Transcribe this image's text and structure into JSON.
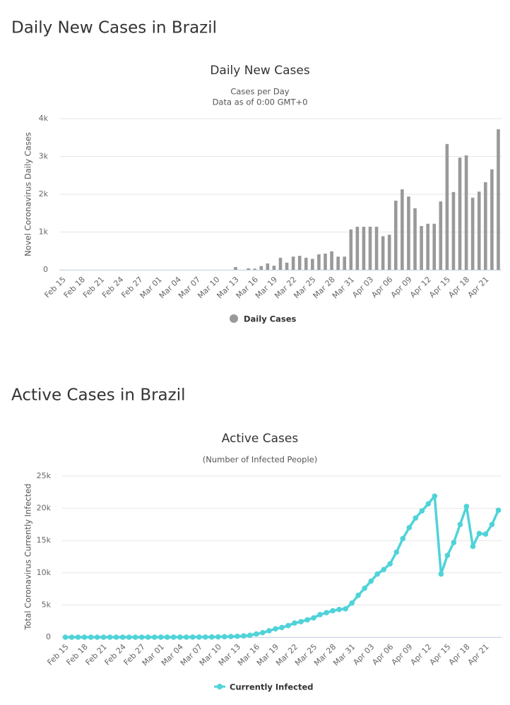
{
  "headings": [
    "Daily New Cases in Brazil",
    "Active Cases in Brazil"
  ],
  "chart_data": [
    {
      "type": "bar",
      "title": "Daily New Cases",
      "subtitle": [
        "Cases per Day",
        "Data as of 0:00 GMT+0"
      ],
      "ylabel": "Novel Coronavirus Daily Cases",
      "categories": [
        "Feb 15",
        null,
        null,
        "Feb 18",
        null,
        null,
        "Feb 21",
        null,
        null,
        "Feb 24",
        null,
        null,
        "Feb 27",
        null,
        null,
        "Mar 01",
        null,
        null,
        "Mar 04",
        null,
        null,
        "Mar 07",
        null,
        null,
        "Mar 10",
        null,
        null,
        "Mar 13",
        null,
        null,
        "Mar 16",
        null,
        null,
        "Mar 19",
        null,
        null,
        "Mar 22",
        null,
        null,
        "Mar 25",
        null,
        null,
        "Mar 28",
        null,
        null,
        "Mar 31",
        null,
        null,
        "Apr 03",
        null,
        null,
        "Apr 06",
        null,
        null,
        "Apr 09",
        null,
        null,
        "Apr 12",
        null,
        null,
        "Apr 15",
        null,
        null,
        "Apr 18",
        null,
        null,
        "Apr 21",
        null,
        null
      ],
      "series": [
        {
          "name": "Daily Cases",
          "color": "#999999",
          "values": [
            0,
            0,
            0,
            0,
            0,
            0,
            0,
            0,
            0,
            0,
            0,
            0,
            0,
            0,
            0,
            0,
            0,
            0,
            0,
            0,
            0,
            0,
            0,
            0,
            0,
            0,
            0,
            75,
            0,
            40,
            30,
            100,
            170,
            110,
            320,
            190,
            350,
            370,
            320,
            290,
            410,
            430,
            490,
            350,
            350,
            1070,
            1140,
            1140,
            1140,
            1140,
            890,
            930,
            1830,
            2130,
            1940,
            1630,
            1160,
            1220,
            1220,
            1810,
            3330,
            2060,
            2970,
            3030,
            1910,
            2070,
            2320,
            2660,
            3720
          ]
        }
      ],
      "ylim": [
        0,
        4000
      ],
      "yticks": [
        0,
        {
          "value": 1000,
          "label": "1k"
        },
        {
          "value": 2000,
          "label": "2k"
        },
        {
          "value": 3000,
          "label": "3k"
        },
        {
          "value": 4000,
          "label": "4k"
        }
      ],
      "grid": true,
      "legend": "bottom"
    },
    {
      "type": "line",
      "title": "Active Cases",
      "subtitle": [
        "(Number of Infected People)"
      ],
      "ylabel": "Total Coronavirus Currently Infected",
      "categories": [
        "Feb 15",
        null,
        null,
        "Feb 18",
        null,
        null,
        "Feb 21",
        null,
        null,
        "Feb 24",
        null,
        null,
        "Feb 27",
        null,
        null,
        "Mar 01",
        null,
        null,
        "Mar 04",
        null,
        null,
        "Mar 07",
        null,
        null,
        "Mar 10",
        null,
        null,
        "Mar 13",
        null,
        null,
        "Mar 16",
        null,
        null,
        "Mar 19",
        null,
        null,
        "Mar 22",
        null,
        null,
        "Mar 25",
        null,
        null,
        "Mar 28",
        null,
        null,
        "Mar 31",
        null,
        null,
        "Apr 03",
        null,
        null,
        "Apr 06",
        null,
        null,
        "Apr 09",
        null,
        null,
        "Apr 12",
        null,
        null,
        "Apr 15",
        null,
        null,
        "Apr 18",
        null,
        null,
        "Apr 21",
        null,
        null
      ],
      "series": [
        {
          "name": "Currently Infected",
          "color": "#4fd3d9",
          "values": [
            0,
            0,
            0,
            0,
            0,
            0,
            0,
            0,
            0,
            0,
            0,
            0,
            1,
            1,
            1,
            2,
            2,
            5,
            10,
            13,
            15,
            20,
            25,
            30,
            50,
            80,
            100,
            150,
            200,
            300,
            500,
            700,
            1000,
            1300,
            1500,
            1800,
            2200,
            2400,
            2700,
            3000,
            3500,
            3800,
            4100,
            4300,
            4400,
            5300,
            6500,
            7600,
            8700,
            9800,
            10500,
            11400,
            13200,
            15300,
            17000,
            18500,
            19600,
            20700,
            21900,
            9800,
            12700,
            14700,
            17500,
            20300,
            14100,
            16100,
            16000,
            17500,
            19700
          ]
        }
      ],
      "ylim": [
        0,
        25000
      ],
      "yticks": [
        0,
        {
          "value": 5000,
          "label": "5k"
        },
        {
          "value": 10000,
          "label": "10k"
        },
        {
          "value": 15000,
          "label": "15k"
        },
        {
          "value": 20000,
          "label": "20k"
        },
        {
          "value": 25000,
          "label": "25k"
        }
      ],
      "grid": true,
      "legend": "bottom"
    }
  ]
}
